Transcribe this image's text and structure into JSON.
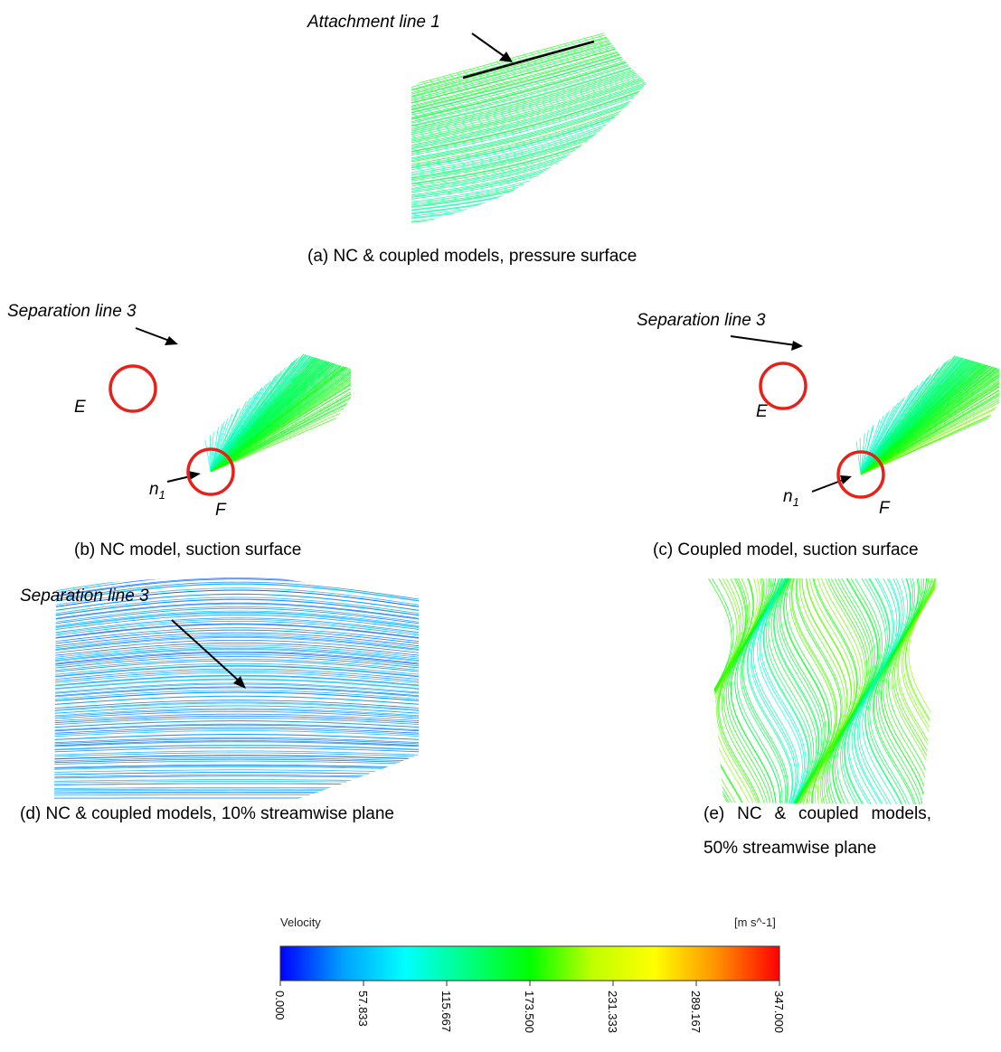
{
  "panels": [
    {
      "caption": "(a) NC & coupled models, pressure surface",
      "annotations": [
        "Attachment line 1"
      ]
    },
    {
      "caption": "(b) NC model, suction surface",
      "annotations": [
        "Separation line 3",
        "E",
        "F"
      ],
      "node": {
        "text": "n",
        "subscript": "1"
      }
    },
    {
      "caption": "(c) Coupled model, suction surface",
      "annotations": [
        "Separation line 3",
        "E",
        "F"
      ],
      "node": {
        "text": "n",
        "subscript": "1"
      }
    },
    {
      "caption": "(d) NC & coupled models, 10% streamwise plane",
      "annotations": [
        "Separation line 3"
      ]
    },
    {
      "caption": "(e) NC & coupled models, 50% streamwise plane",
      "annotations": []
    }
  ],
  "colorbar": {
    "title": "Velocity",
    "unit": "[m s^-1]",
    "lim": [
      0,
      347
    ],
    "ticks": [
      {
        "value": 0,
        "label": "0.000"
      },
      57.833,
      115.667,
      {
        "value": 173.5,
        "label": "173.500"
      },
      231.333,
      289.167,
      {
        "value": 347,
        "label": "347.000"
      }
    ],
    "colors": [
      "#0000ff",
      "#00a0ff",
      "#00ffff",
      "#00ff80",
      "#00ff00",
      "#c0ff00",
      "#ffff00",
      "#ff9000",
      "#ff0000"
    ]
  }
}
